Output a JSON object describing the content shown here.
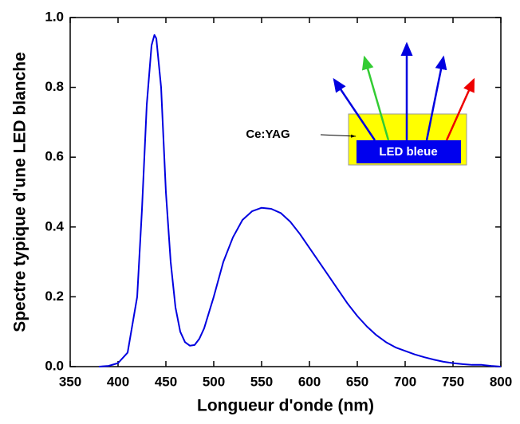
{
  "chart_data": {
    "type": "line",
    "x_label": "Longueur d'onde (nm)",
    "y_label": "Spectre typique d'une LED blanche",
    "x": [
      380,
      390,
      400,
      410,
      420,
      425,
      430,
      435,
      438,
      440,
      445,
      450,
      455,
      460,
      465,
      470,
      475,
      480,
      485,
      490,
      500,
      510,
      520,
      530,
      540,
      550,
      560,
      570,
      580,
      590,
      600,
      610,
      620,
      630,
      640,
      650,
      660,
      670,
      680,
      690,
      700,
      710,
      720,
      730,
      740,
      750,
      760,
      770,
      780,
      790,
      800
    ],
    "values": [
      0,
      0.002,
      0.01,
      0.04,
      0.2,
      0.45,
      0.75,
      0.92,
      0.95,
      0.94,
      0.8,
      0.5,
      0.3,
      0.17,
      0.1,
      0.07,
      0.06,
      0.062,
      0.08,
      0.11,
      0.2,
      0.3,
      0.37,
      0.42,
      0.445,
      0.455,
      0.452,
      0.44,
      0.415,
      0.38,
      0.34,
      0.3,
      0.26,
      0.22,
      0.18,
      0.145,
      0.115,
      0.09,
      0.07,
      0.055,
      0.045,
      0.035,
      0.027,
      0.02,
      0.014,
      0.01,
      0.007,
      0.005,
      0.005,
      0.002,
      0
    ],
    "color": "#0000e0",
    "xlim": [
      350,
      800
    ],
    "xticks": [
      350,
      400,
      450,
      500,
      550,
      600,
      650,
      700,
      750,
      800
    ],
    "ylim": [
      0,
      1
    ],
    "yticks": [
      {
        "value": 0,
        "label": "0.0"
      },
      0.2,
      0.4,
      0.6,
      0.8,
      {
        "value": 1,
        "label": "1.0"
      }
    ],
    "annotations": [
      "Ce:YAG",
      "LED bleue"
    ]
  }
}
